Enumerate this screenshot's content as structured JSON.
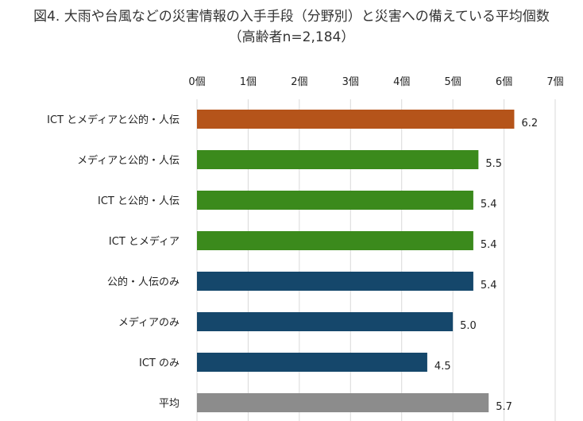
{
  "chart_data": {
    "type": "bar",
    "orientation": "horizontal",
    "title": "図4. 大雨や台風などの災害情報の入手手段（分野別）と災害への備えている平均個数",
    "subtitle": "（高齢者n=2,184）",
    "categories": [
      "ICT とメディアと公的・人伝",
      "メディアと公的・人伝",
      "ICT と公的・人伝",
      "ICT とメディア",
      "公的・人伝のみ",
      "メディアのみ",
      "ICT のみ",
      "平均"
    ],
    "values": [
      6.2,
      5.5,
      5.4,
      5.4,
      5.4,
      5.0,
      4.5,
      5.7
    ],
    "data_labels": [
      "6.2",
      "5.5",
      "5.4",
      "5.4",
      "5.4",
      "5.0",
      "4.5",
      "5.7"
    ],
    "bar_colors": [
      "#b5541a",
      "#3b8a1c",
      "#3b8a1c",
      "#3b8a1c",
      "#15476b",
      "#15476b",
      "#15476b",
      "#8c8c8c"
    ],
    "xlim": [
      0,
      7
    ],
    "x_ticks": [
      "0個",
      "1個",
      "2個",
      "3個",
      "4個",
      "5個",
      "6個",
      "7個"
    ],
    "axis_position": "top",
    "grid": true
  }
}
